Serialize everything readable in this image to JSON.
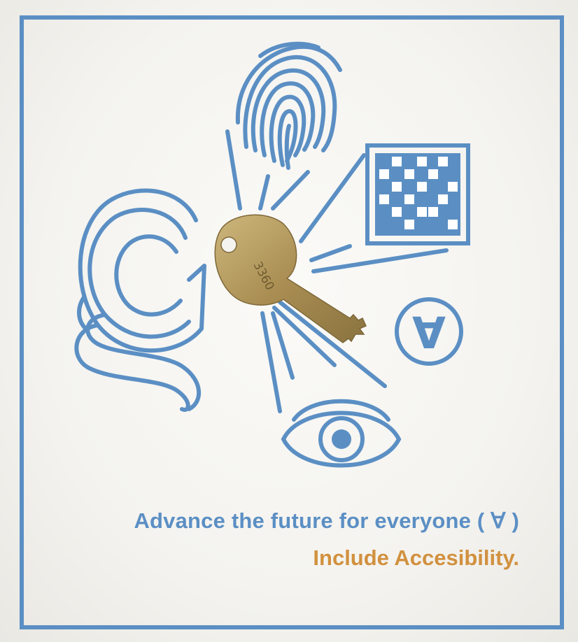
{
  "poster": {
    "headline": "Advance the future for everyone ( ∀ )",
    "subline": "Include Accesibility.",
    "key_number": "3360",
    "badge_symbol": "∀"
  },
  "colors": {
    "frame": "#5b8fc4",
    "line_art": "#5b8fc4",
    "headline": "#5b8fc4",
    "subline": "#d2913f",
    "key_brass": "#b59a5c",
    "background": "#f6f5f1"
  },
  "icons": [
    "fingerprint-icon",
    "qr-code-icon",
    "for-all-symbol-icon",
    "eye-icon",
    "captcha-c-icon",
    "key-icon"
  ]
}
